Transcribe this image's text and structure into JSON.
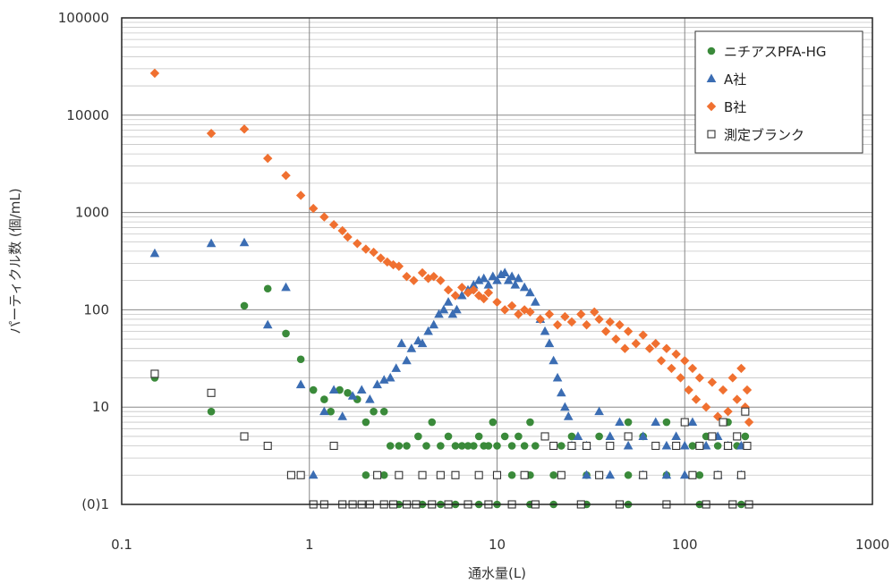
{
  "chart_data": {
    "type": "scatter",
    "xlabel": "通水量(L)",
    "ylabel": "パーティクル数 (個/mL)",
    "x_scale": "log",
    "y_scale": "log",
    "xlim": [
      0.1,
      1000
    ],
    "ylim": [
      1,
      100000
    ],
    "x_tick_labels": [
      "0.1",
      "1",
      "10",
      "100",
      "1000"
    ],
    "y_tick_labels": [
      "(0)1",
      "10",
      "100",
      "1000",
      "10000",
      "100000"
    ],
    "grid": true,
    "legend_position": "top-right",
    "series": [
      {
        "name": "ニチアスPFA-HG",
        "marker": "circle",
        "color": "#3a8a3a",
        "points": [
          [
            0.15,
            20
          ],
          [
            0.3,
            9
          ],
          [
            0.45,
            110
          ],
          [
            0.6,
            165
          ],
          [
            0.75,
            57
          ],
          [
            0.9,
            31
          ],
          [
            1.05,
            15
          ],
          [
            1.2,
            12
          ],
          [
            1.3,
            9
          ],
          [
            1.45,
            15
          ],
          [
            1.6,
            14
          ],
          [
            1.8,
            12
          ],
          [
            2.0,
            7
          ],
          [
            2.2,
            9
          ],
          [
            2.5,
            9
          ],
          [
            2.7,
            4
          ],
          [
            3.0,
            4
          ],
          [
            3.3,
            4
          ],
          [
            3.8,
            5
          ],
          [
            4.2,
            4
          ],
          [
            4.5,
            7
          ],
          [
            5.0,
            4
          ],
          [
            5.5,
            5
          ],
          [
            6.0,
            4
          ],
          [
            6.5,
            4
          ],
          [
            7.0,
            4
          ],
          [
            7.5,
            4
          ],
          [
            8.0,
            5
          ],
          [
            8.5,
            4
          ],
          [
            9.0,
            4
          ],
          [
            9.5,
            7
          ],
          [
            10,
            4
          ],
          [
            11,
            5
          ],
          [
            12,
            4
          ],
          [
            13,
            5
          ],
          [
            14,
            4
          ],
          [
            15,
            7
          ],
          [
            16,
            4
          ],
          [
            18,
            5
          ],
          [
            20,
            4
          ],
          [
            22,
            4
          ],
          [
            25,
            5
          ],
          [
            30,
            4
          ],
          [
            35,
            5
          ],
          [
            40,
            4
          ],
          [
            50,
            7
          ],
          [
            60,
            5
          ],
          [
            70,
            4
          ],
          [
            80,
            7
          ],
          [
            90,
            4
          ],
          [
            100,
            7
          ],
          [
            110,
            4
          ],
          [
            130,
            5
          ],
          [
            150,
            4
          ],
          [
            170,
            7
          ],
          [
            190,
            4
          ],
          [
            210,
            5
          ],
          [
            2.0,
            2
          ],
          [
            2.5,
            2
          ],
          [
            3.0,
            2
          ],
          [
            4.0,
            2
          ],
          [
            5.0,
            2
          ],
          [
            6.0,
            2
          ],
          [
            8.0,
            2
          ],
          [
            10,
            2
          ],
          [
            12,
            2
          ],
          [
            15,
            2
          ],
          [
            20,
            2
          ],
          [
            30,
            2
          ],
          [
            50,
            2
          ],
          [
            80,
            2
          ],
          [
            120,
            2
          ],
          [
            200,
            2
          ],
          [
            3.0,
            1
          ],
          [
            4.0,
            1
          ],
          [
            5.0,
            1
          ],
          [
            6.0,
            1
          ],
          [
            8.0,
            1
          ],
          [
            10,
            1
          ],
          [
            12,
            1
          ],
          [
            15,
            1
          ],
          [
            20,
            1
          ],
          [
            30,
            1
          ],
          [
            50,
            1
          ],
          [
            80,
            1
          ],
          [
            120,
            1
          ],
          [
            200,
            1
          ]
        ]
      },
      {
        "name": "A社",
        "marker": "triangle",
        "color": "#3b6db3",
        "points": [
          [
            0.15,
            380
          ],
          [
            0.3,
            480
          ],
          [
            0.45,
            490
          ],
          [
            0.6,
            70
          ],
          [
            0.75,
            170
          ],
          [
            0.9,
            17
          ],
          [
            1.05,
            2
          ],
          [
            1.2,
            9
          ],
          [
            1.35,
            15
          ],
          [
            1.5,
            8
          ],
          [
            1.7,
            13
          ],
          [
            1.9,
            15
          ],
          [
            2.1,
            12
          ],
          [
            2.3,
            17
          ],
          [
            2.5,
            19
          ],
          [
            2.7,
            20
          ],
          [
            2.9,
            25
          ],
          [
            3.1,
            45
          ],
          [
            3.3,
            30
          ],
          [
            3.5,
            40
          ],
          [
            3.8,
            48
          ],
          [
            4.0,
            45
          ],
          [
            4.3,
            60
          ],
          [
            4.6,
            70
          ],
          [
            4.9,
            90
          ],
          [
            5.2,
            100
          ],
          [
            5.5,
            120
          ],
          [
            5.8,
            90
          ],
          [
            6.1,
            100
          ],
          [
            6.5,
            140
          ],
          [
            7.0,
            160
          ],
          [
            7.5,
            180
          ],
          [
            8.0,
            200
          ],
          [
            8.5,
            210
          ],
          [
            9.0,
            180
          ],
          [
            9.5,
            220
          ],
          [
            10,
            200
          ],
          [
            10.5,
            230
          ],
          [
            11,
            240
          ],
          [
            11.5,
            200
          ],
          [
            12,
            220
          ],
          [
            12.5,
            180
          ],
          [
            13,
            210
          ],
          [
            14,
            170
          ],
          [
            15,
            150
          ],
          [
            16,
            120
          ],
          [
            17,
            80
          ],
          [
            18,
            60
          ],
          [
            19,
            45
          ],
          [
            20,
            30
          ],
          [
            21,
            20
          ],
          [
            22,
            14
          ],
          [
            23,
            10
          ],
          [
            24,
            8
          ],
          [
            25,
            4
          ],
          [
            27,
            5
          ],
          [
            30,
            4
          ],
          [
            35,
            9
          ],
          [
            40,
            5
          ],
          [
            45,
            7
          ],
          [
            50,
            4
          ],
          [
            60,
            5
          ],
          [
            70,
            7
          ],
          [
            80,
            4
          ],
          [
            90,
            5
          ],
          [
            100,
            4
          ],
          [
            110,
            7
          ],
          [
            130,
            4
          ],
          [
            150,
            5
          ],
          [
            170,
            4
          ],
          [
            200,
            4
          ],
          [
            30,
            2
          ],
          [
            40,
            2
          ],
          [
            60,
            2
          ],
          [
            80,
            2
          ],
          [
            100,
            2
          ],
          [
            150,
            2
          ],
          [
            200,
            2
          ]
        ]
      },
      {
        "name": "B社",
        "marker": "diamond",
        "color": "#f07030",
        "points": [
          [
            0.15,
            27000
          ],
          [
            0.3,
            6500
          ],
          [
            0.45,
            7200
          ],
          [
            0.6,
            3600
          ],
          [
            0.75,
            2400
          ],
          [
            0.9,
            1500
          ],
          [
            1.05,
            1100
          ],
          [
            1.2,
            900
          ],
          [
            1.35,
            750
          ],
          [
            1.5,
            650
          ],
          [
            1.6,
            560
          ],
          [
            1.8,
            480
          ],
          [
            2.0,
            420
          ],
          [
            2.2,
            390
          ],
          [
            2.4,
            340
          ],
          [
            2.6,
            310
          ],
          [
            2.8,
            290
          ],
          [
            3.0,
            280
          ],
          [
            3.3,
            220
          ],
          [
            3.6,
            200
          ],
          [
            4.0,
            240
          ],
          [
            4.3,
            210
          ],
          [
            4.6,
            220
          ],
          [
            5.0,
            200
          ],
          [
            5.5,
            160
          ],
          [
            6.0,
            140
          ],
          [
            6.5,
            170
          ],
          [
            7.0,
            150
          ],
          [
            7.5,
            160
          ],
          [
            8.0,
            140
          ],
          [
            8.5,
            130
          ],
          [
            9.0,
            150
          ],
          [
            10,
            120
          ],
          [
            11,
            100
          ],
          [
            12,
            110
          ],
          [
            13,
            90
          ],
          [
            14,
            100
          ],
          [
            15,
            95
          ],
          [
            17,
            80
          ],
          [
            19,
            90
          ],
          [
            21,
            70
          ],
          [
            23,
            85
          ],
          [
            25,
            75
          ],
          [
            28,
            90
          ],
          [
            30,
            70
          ],
          [
            33,
            95
          ],
          [
            35,
            80
          ],
          [
            38,
            60
          ],
          [
            40,
            75
          ],
          [
            43,
            50
          ],
          [
            45,
            70
          ],
          [
            48,
            40
          ],
          [
            50,
            60
          ],
          [
            55,
            45
          ],
          [
            60,
            55
          ],
          [
            65,
            40
          ],
          [
            70,
            45
          ],
          [
            75,
            30
          ],
          [
            80,
            40
          ],
          [
            85,
            25
          ],
          [
            90,
            35
          ],
          [
            95,
            20
          ],
          [
            100,
            30
          ],
          [
            105,
            15
          ],
          [
            110,
            25
          ],
          [
            115,
            12
          ],
          [
            120,
            20
          ],
          [
            130,
            10
          ],
          [
            140,
            18
          ],
          [
            150,
            8
          ],
          [
            160,
            15
          ],
          [
            170,
            9
          ],
          [
            180,
            20
          ],
          [
            190,
            12
          ],
          [
            200,
            25
          ],
          [
            210,
            10
          ],
          [
            215,
            15
          ],
          [
            220,
            7
          ]
        ]
      },
      {
        "name": "測定ブランク",
        "marker": "square-open",
        "color": "#333333",
        "points": [
          [
            0.15,
            22
          ],
          [
            0.3,
            14
          ],
          [
            0.45,
            5
          ],
          [
            0.6,
            4
          ],
          [
            0.8,
            2
          ],
          [
            0.9,
            2
          ],
          [
            1.05,
            1
          ],
          [
            1.2,
            1
          ],
          [
            1.35,
            4
          ],
          [
            1.5,
            1
          ],
          [
            1.7,
            1
          ],
          [
            1.9,
            1
          ],
          [
            2.1,
            1
          ],
          [
            2.3,
            2
          ],
          [
            2.5,
            1
          ],
          [
            2.8,
            1
          ],
          [
            3.0,
            2
          ],
          [
            3.3,
            1
          ],
          [
            3.7,
            1
          ],
          [
            4.0,
            2
          ],
          [
            4.5,
            1
          ],
          [
            5.0,
            2
          ],
          [
            5.5,
            1
          ],
          [
            6.0,
            2
          ],
          [
            7.0,
            1
          ],
          [
            8.0,
            2
          ],
          [
            9.0,
            1
          ],
          [
            10,
            2
          ],
          [
            12,
            1
          ],
          [
            14,
            2
          ],
          [
            16,
            1
          ],
          [
            18,
            5
          ],
          [
            20,
            4
          ],
          [
            22,
            2
          ],
          [
            25,
            4
          ],
          [
            28,
            1
          ],
          [
            30,
            4
          ],
          [
            35,
            2
          ],
          [
            40,
            4
          ],
          [
            45,
            1
          ],
          [
            50,
            5
          ],
          [
            60,
            2
          ],
          [
            70,
            4
          ],
          [
            80,
            1
          ],
          [
            90,
            4
          ],
          [
            100,
            7
          ],
          [
            110,
            2
          ],
          [
            120,
            4
          ],
          [
            130,
            1
          ],
          [
            140,
            5
          ],
          [
            150,
            2
          ],
          [
            160,
            7
          ],
          [
            170,
            4
          ],
          [
            180,
            1
          ],
          [
            190,
            5
          ],
          [
            200,
            2
          ],
          [
            210,
            9
          ],
          [
            215,
            4
          ],
          [
            220,
            1
          ]
        ]
      }
    ]
  }
}
